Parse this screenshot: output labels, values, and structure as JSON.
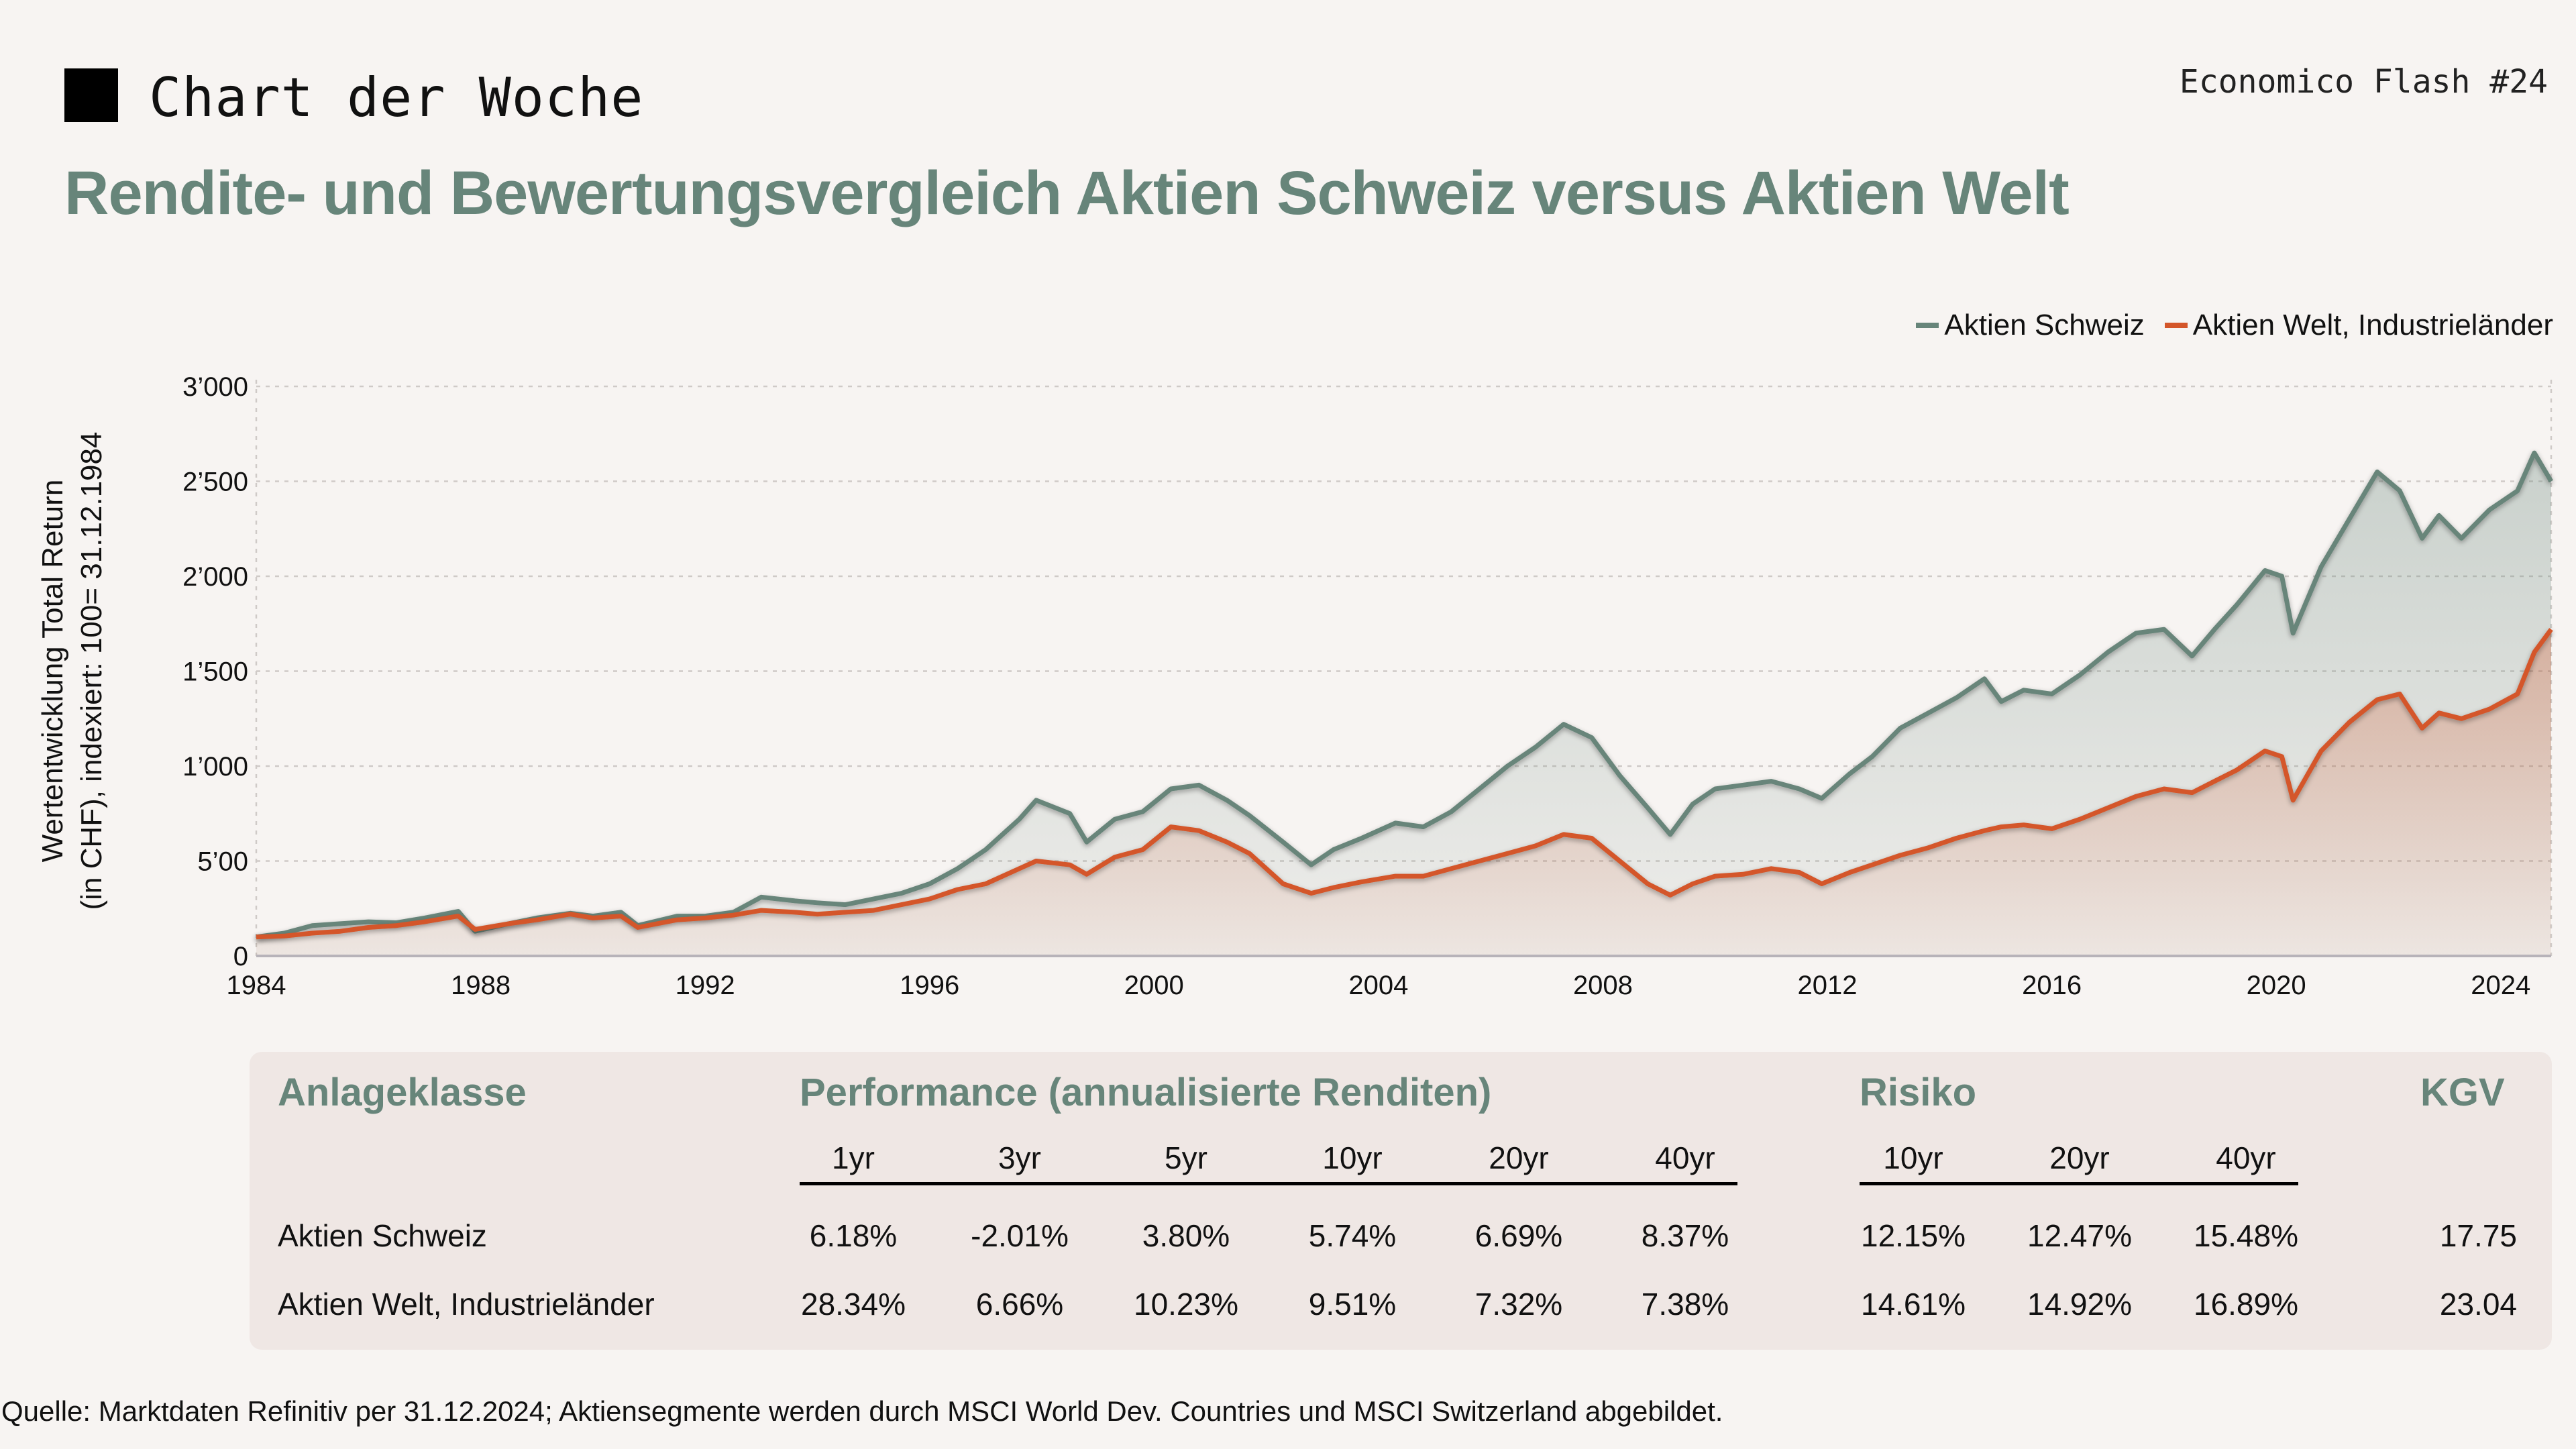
{
  "header": {
    "kicker": "Chart der Woche",
    "issue": "Economico Flash #24",
    "title": "Rendite- und Bewertungsvergleich Aktien Schweiz versus Aktien Welt"
  },
  "colors": {
    "schweiz": "#67857a",
    "welt": "#d4562a",
    "title": "#67857a"
  },
  "chart_data": {
    "type": "area",
    "title": "Rendite- und Bewertungsvergleich Aktien Schweiz versus Aktien Welt",
    "xlabel": "",
    "ylabel_lines": [
      "Wertentwicklung Total Return",
      "(in CHF), indexiert: 100= 31.12.1984"
    ],
    "xlim": [
      1984,
      2024.9
    ],
    "ylim": [
      0,
      3000
    ],
    "x_ticks": [
      1984,
      1988,
      1992,
      1996,
      2000,
      2004,
      2008,
      2012,
      2016,
      2020,
      2024
    ],
    "x_tick_labels": [
      "1984",
      "1988",
      "1992",
      "1996",
      "2000",
      "2004",
      "2008",
      "2012",
      "2016",
      "2020",
      "2024"
    ],
    "y_ticks": [
      0,
      500,
      1000,
      1500,
      2000,
      2500,
      3000
    ],
    "y_tick_labels": [
      "0",
      "5’00",
      "1’000",
      "1’500",
      "2’000",
      "2’500",
      "3’000"
    ],
    "grid": true,
    "legend_position": "top-right",
    "x": [
      1984.0,
      1984.5,
      1985.0,
      1985.5,
      1986.0,
      1986.5,
      1987.0,
      1987.6,
      1987.9,
      1988.5,
      1989.0,
      1989.6,
      1990.0,
      1990.5,
      1990.8,
      1991.5,
      1992.0,
      1992.5,
      1993.0,
      1993.6,
      1994.0,
      1994.5,
      1995.0,
      1995.5,
      1996.0,
      1996.5,
      1997.0,
      1997.6,
      1997.9,
      1998.5,
      1998.8,
      1999.3,
      1999.8,
      2000.3,
      2000.8,
      2001.3,
      2001.7,
      2002.3,
      2002.8,
      2003.2,
      2003.7,
      2004.3,
      2004.8,
      2005.3,
      2005.8,
      2006.3,
      2006.8,
      2007.3,
      2007.8,
      2008.3,
      2008.8,
      2009.2,
      2009.6,
      2010.0,
      2010.5,
      2011.0,
      2011.5,
      2011.9,
      2012.4,
      2012.8,
      2013.3,
      2013.8,
      2014.3,
      2014.8,
      2015.1,
      2015.5,
      2016.0,
      2016.5,
      2017.0,
      2017.5,
      2018.0,
      2018.5,
      2018.9,
      2019.3,
      2019.8,
      2020.1,
      2020.3,
      2020.8,
      2021.3,
      2021.8,
      2022.2,
      2022.6,
      2022.9,
      2023.3,
      2023.8,
      2024.3,
      2024.6,
      2024.9
    ],
    "series": [
      {
        "name": "Aktien Schweiz",
        "color": "#67857a",
        "values": [
          100,
          120,
          160,
          170,
          180,
          175,
          200,
          235,
          130,
          170,
          200,
          225,
          210,
          230,
          160,
          210,
          210,
          230,
          310,
          290,
          280,
          270,
          300,
          330,
          380,
          460,
          560,
          720,
          820,
          750,
          600,
          720,
          760,
          880,
          900,
          820,
          740,
          600,
          480,
          560,
          620,
          700,
          680,
          760,
          880,
          1000,
          1100,
          1220,
          1150,
          950,
          780,
          640,
          800,
          880,
          900,
          920,
          880,
          830,
          960,
          1050,
          1200,
          1280,
          1360,
          1460,
          1340,
          1400,
          1380,
          1480,
          1600,
          1700,
          1720,
          1580,
          1720,
          1850,
          2030,
          2000,
          1700,
          2050,
          2300,
          2550,
          2450,
          2200,
          2320,
          2200,
          2350,
          2450,
          2650,
          2500
        ]
      },
      {
        "name": "Aktien Welt, Industrieländer",
        "color": "#d4562a",
        "values": [
          100,
          105,
          120,
          130,
          150,
          160,
          180,
          210,
          140,
          170,
          190,
          220,
          200,
          210,
          150,
          190,
          200,
          215,
          240,
          230,
          220,
          230,
          240,
          270,
          300,
          350,
          380,
          460,
          500,
          480,
          430,
          520,
          560,
          680,
          660,
          600,
          540,
          380,
          330,
          360,
          390,
          420,
          420,
          460,
          500,
          540,
          580,
          640,
          620,
          500,
          380,
          320,
          380,
          420,
          430,
          460,
          440,
          380,
          440,
          480,
          530,
          570,
          620,
          660,
          680,
          690,
          670,
          720,
          780,
          840,
          880,
          860,
          920,
          980,
          1080,
          1050,
          820,
          1080,
          1230,
          1350,
          1380,
          1200,
          1280,
          1250,
          1300,
          1380,
          1600,
          1720
        ]
      }
    ]
  },
  "ylabel": {
    "line1": "Wertentwicklung Total Return",
    "line2": "(in CHF), indexiert: 100= 31.12.1984"
  },
  "legend": {
    "items": [
      {
        "label": "Aktien Schweiz"
      },
      {
        "label": "Aktien Welt, Industrieländer"
      }
    ]
  },
  "table": {
    "groups": {
      "asset_class": "Anlageklasse",
      "performance": "Performance (annualisierte Renditen)",
      "risk": "Risiko",
      "pe": "KGV"
    },
    "performance_columns": [
      "1yr",
      "3yr",
      "5yr",
      "10yr",
      "20yr",
      "40yr"
    ],
    "risk_columns": [
      "10yr",
      "20yr",
      "40yr"
    ],
    "rows": [
      {
        "label": "Aktien Schweiz",
        "performance": [
          "6.18%",
          "-2.01%",
          "3.80%",
          "5.74%",
          "6.69%",
          "8.37%"
        ],
        "risk": [
          "12.15%",
          "12.47%",
          "15.48%"
        ],
        "kgv": "17.75"
      },
      {
        "label": "Aktien Welt, Industrieländer",
        "performance": [
          "28.34%",
          "6.66%",
          "10.23%",
          "9.51%",
          "7.32%",
          "7.38%"
        ],
        "risk": [
          "14.61%",
          "14.92%",
          "16.89%"
        ],
        "kgv": "23.04"
      }
    ]
  },
  "footer": {
    "source": "Quelle: Marktdaten Refinitiv per 31.12.2024; Aktiensegmente werden durch MSCI World Dev. Countries und MSCI Switzerland abgebildet."
  }
}
